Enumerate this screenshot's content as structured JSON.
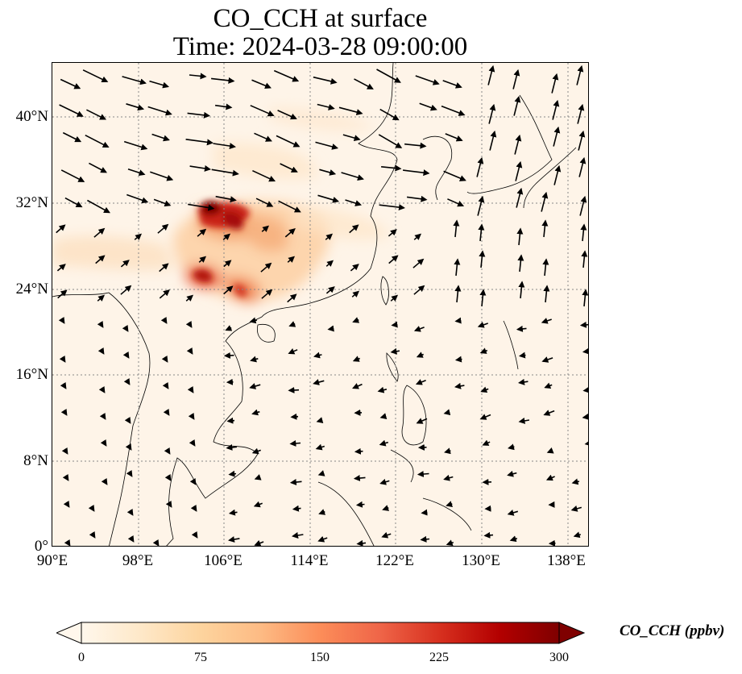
{
  "title": {
    "line1": "CO_CCH at surface",
    "line2": "Time: 2024-03-28 09:00:00"
  },
  "map": {
    "variable": "CO_CCH",
    "level": "surface",
    "lon_range": [
      90,
      140
    ],
    "lat_range": [
      0,
      45
    ],
    "lat_ticks": [
      "0°",
      "8°N",
      "16°N",
      "24°N",
      "32°N",
      "40°N"
    ],
    "lon_ticks": [
      "90°E",
      "98°E",
      "106°E",
      "114°E",
      "122°E",
      "130°E",
      "138°E"
    ],
    "gridlines": "dotted",
    "overlay": "wind vectors (black arrows)",
    "field_colors": {
      "background": "#fef4e8",
      "low": "#fdd9b3",
      "mid": "#f08a50",
      "high": "#c92418",
      "max": "#7f0000"
    }
  },
  "colorbar": {
    "label": "CO_CCH (ppbv)",
    "min": 0,
    "max": 300,
    "ticks": [
      "0",
      "75",
      "150",
      "225",
      "300"
    ],
    "colormap": "OrRd",
    "extend": "both",
    "stops": [
      "#fff7ec",
      "#fee8c8",
      "#fdd49e",
      "#fdbb84",
      "#fc8d59",
      "#ef6548",
      "#d7301f",
      "#b30000",
      "#7f0000"
    ]
  }
}
